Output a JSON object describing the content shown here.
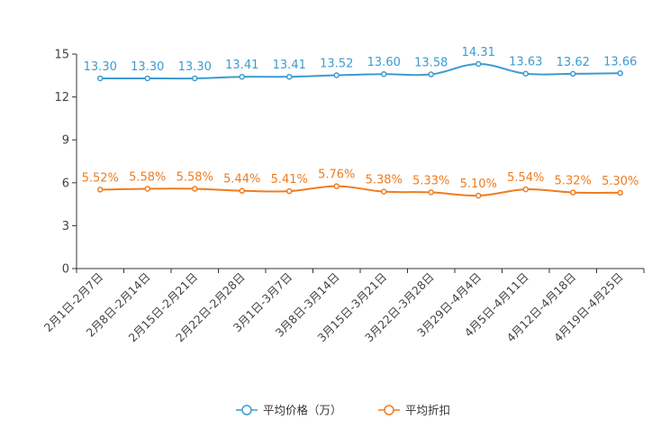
{
  "chart_data": {
    "type": "line",
    "categories": [
      "2月1日-2月7日",
      "2月8日-2月14日",
      "2月15日-2月21日",
      "2月22日-2月28日",
      "3月1日-3月7日",
      "3月8日-3月14日",
      "3月15日-3月21日",
      "3月22日-3月28日",
      "3月29日-4月4日",
      "4月5日-4月11日",
      "4月12日-4月18日",
      "4月19日-4月25日"
    ],
    "series": [
      {
        "name": "平均价格（万）",
        "color": "#3d9bd1",
        "values": [
          13.3,
          13.3,
          13.3,
          13.41,
          13.41,
          13.52,
          13.6,
          13.58,
          14.31,
          13.63,
          13.62,
          13.66
        ],
        "labels": [
          "13.30",
          "13.30",
          "13.30",
          "13.41",
          "13.41",
          "13.52",
          "13.60",
          "13.58",
          "14.31",
          "13.63",
          "13.62",
          "13.66"
        ]
      },
      {
        "name": "平均折扣",
        "color": "#f07c1e",
        "values": [
          5.52,
          5.58,
          5.58,
          5.44,
          5.41,
          5.76,
          5.38,
          5.33,
          5.1,
          5.54,
          5.32,
          5.3
        ],
        "labels": [
          "5.52%",
          "5.58%",
          "5.58%",
          "5.44%",
          "5.41%",
          "5.76%",
          "5.38%",
          "5.33%",
          "5.10%",
          "5.54%",
          "5.32%",
          "5.30%"
        ]
      }
    ],
    "ylim": [
      0,
      15
    ],
    "yticks": [
      0,
      3,
      6,
      9,
      12,
      15
    ],
    "legend_position": "bottom-center",
    "grid": false
  }
}
